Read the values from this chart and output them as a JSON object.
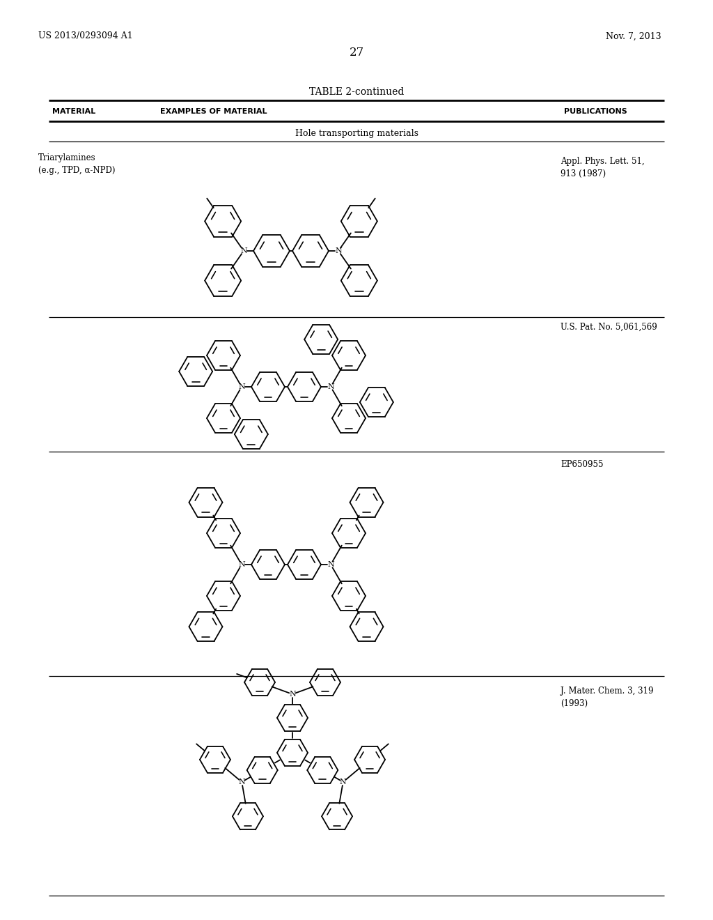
{
  "background_color": "#ffffff",
  "page_number": "27",
  "patent_left": "US 2013/0293094 A1",
  "patent_right": "Nov. 7, 2013",
  "table_title": "TABLE 2-continued",
  "col1_header": "MATERIAL",
  "col2_header": "EXAMPLES OF MATERIAL",
  "col3_header": "PUBLICATIONS",
  "section_label": "Hole transporting materials",
  "row1_material": "Triarylamines\n(e.g., TPD, α-NPD)",
  "row1_pub": "Appl. Phys. Lett. 51,\n913 (1987)",
  "row2_pub": "U.S. Pat. No. 5,061,569",
  "row3_pub": "EP650955",
  "row4_pub": "J. Mater. Chem. 3, 319\n(1993)"
}
